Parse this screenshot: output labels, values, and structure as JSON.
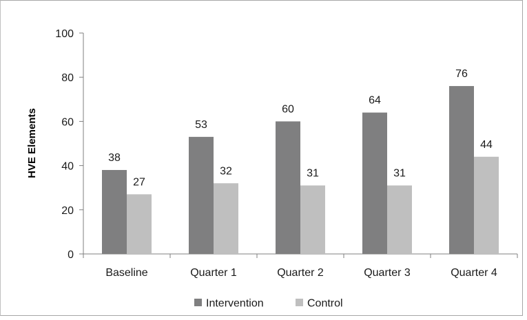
{
  "chart_data": {
    "type": "bar",
    "title": "",
    "xlabel": "",
    "ylabel": "HVE Elements",
    "categories": [
      "Baseline",
      "Quarter 1",
      "Quarter 2",
      "Quarter 3",
      "Quarter 4"
    ],
    "series": [
      {
        "name": "Intervention",
        "color": "#7f7f80",
        "values": [
          38,
          53,
          60,
          64,
          76
        ]
      },
      {
        "name": "Control",
        "color": "#bfbfbf",
        "values": [
          27,
          32,
          31,
          31,
          44
        ]
      }
    ],
    "ylim": [
      0,
      100
    ],
    "yticks": [
      "0",
      "20",
      "40",
      "60",
      "80",
      "100"
    ],
    "grid": false,
    "legend": "bottom",
    "data_labels": true
  }
}
